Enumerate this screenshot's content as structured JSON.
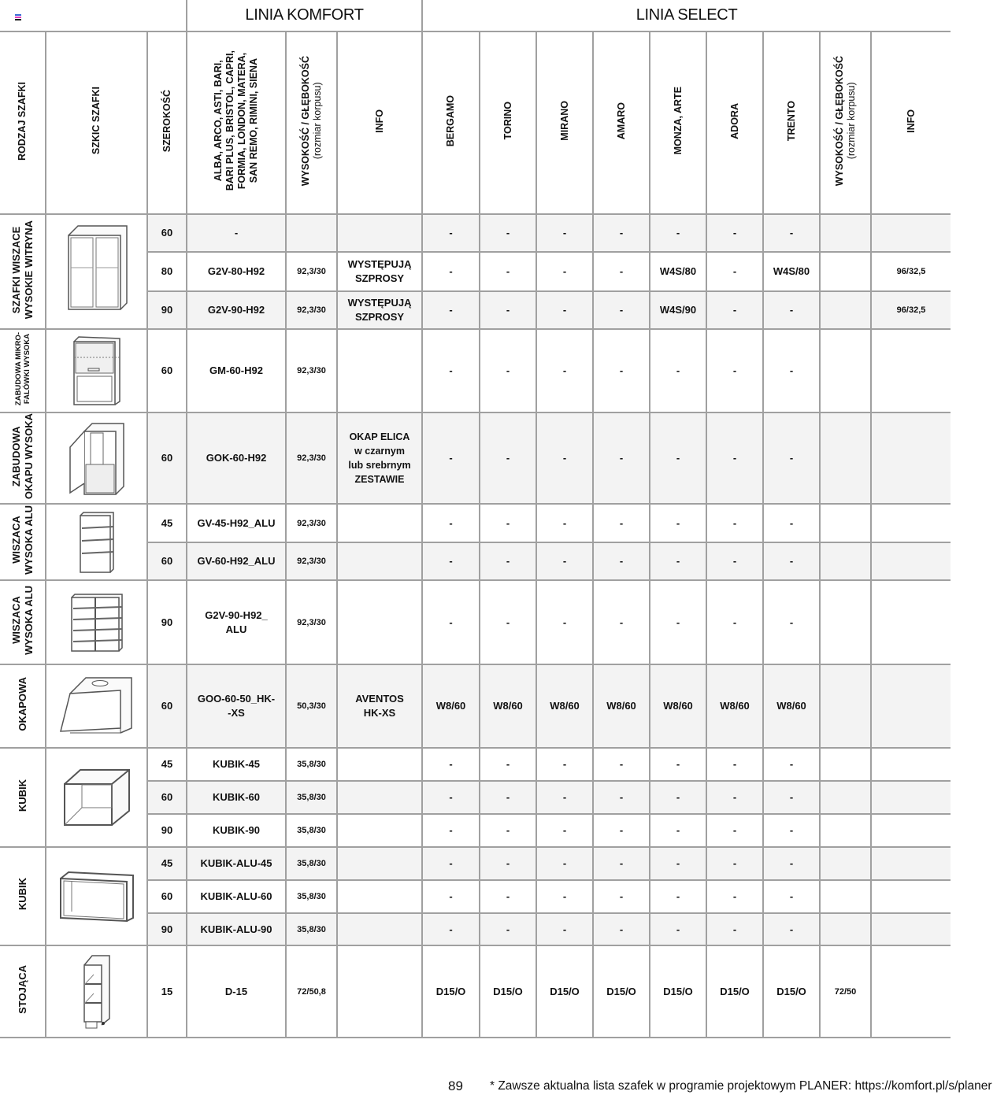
{
  "header": {
    "line_komfort": "LINIA KOMFORT",
    "line_select": "LINIA SELECT",
    "columns": {
      "type": "RODZAJ SZAFKI",
      "sketch": "SZKIC SZAFKI",
      "width": "SZEROKOŚĆ",
      "komfort_models": "ALBA, ARCO, ASTI, BARI,\nBARI PLUS, BRISTOL, CAPRI,\nFORMIA, LONDON, MATERA,\nSAN REMO, RIMINI, SIENA",
      "komfort_dims": "WYSOKOŚĆ / GŁĘBOKOŚĆ",
      "komfort_dims_sub": "(rozmiar korpusu)",
      "komfort_info": "INFO",
      "select_models": [
        "BERGAMO",
        "TORINO",
        "MIRANO",
        "AMARO",
        "MONZA,  ARTE",
        "ADORA",
        "TRENTO"
      ],
      "select_dims": "WYSOKOŚĆ / GŁĘBOKOŚĆ",
      "select_dims_sub": "(rozmiar korpusu)",
      "select_info": "INFO"
    }
  },
  "groups": [
    {
      "label": "SZAFKI WISZACE\nWYSOKIE WITRYNA",
      "sketch_icon": "glass-door-cabinet-icon",
      "rows": [
        {
          "width": "60",
          "code": "-",
          "dims": "",
          "info": "",
          "select": [
            "-",
            "-",
            "-",
            "-",
            "-",
            "-",
            "-"
          ],
          "select_dims": "",
          "select_info": ""
        },
        {
          "width": "80",
          "code": "G2V-80-H92",
          "dims": "92,3/30",
          "info": "WYSTĘPUJĄ\nSZPROSY",
          "select": [
            "-",
            "-",
            "-",
            "-",
            "W4S/80",
            "-",
            "W4S/80"
          ],
          "select_dims": "",
          "select_info": "96/32,5"
        },
        {
          "width": "90",
          "code": "G2V-90-H92",
          "dims": "92,3/30",
          "info": "WYSTĘPUJĄ\nSZPROSY",
          "select": [
            "-",
            "-",
            "-",
            "-",
            "W4S/90",
            "-",
            "-"
          ],
          "select_dims": "",
          "select_info": "96/32,5"
        }
      ]
    },
    {
      "label": "ZABUDOWA MIKRO-\nFALÓWKI WYSOKA",
      "sketch_icon": "microwave-cabinet-icon",
      "rows": [
        {
          "width": "60",
          "code": "GM-60-H92",
          "dims": "92,3/30",
          "info": "",
          "select": [
            "-",
            "-",
            "-",
            "-",
            "-",
            "-",
            "-"
          ],
          "select_dims": "",
          "select_info": ""
        }
      ]
    },
    {
      "label": "ZABUDOWA\nOKAPU WYSOKA",
      "sketch_icon": "hood-cabinet-icon",
      "rows": [
        {
          "width": "60",
          "code": "GOK-60-H92",
          "dims": "92,3/30",
          "info": "OKAP ELICA\nw czarnym\nlub srebrnym\nZESTAWIE",
          "select": [
            "-",
            "-",
            "-",
            "-",
            "-",
            "-",
            "-"
          ],
          "select_dims": "",
          "select_info": ""
        }
      ]
    },
    {
      "label": "WISZACA\nWYSOKA ALU",
      "sketch_icon": "open-shelf-cabinet-icon",
      "rows": [
        {
          "width": "45",
          "code": "GV-45-H92_ALU",
          "dims": "92,3/30",
          "info": "",
          "select": [
            "-",
            "-",
            "-",
            "-",
            "-",
            "-",
            "-"
          ],
          "select_dims": "",
          "select_info": ""
        },
        {
          "width": "60",
          "code": "GV-60-H92_ALU",
          "dims": "92,3/30",
          "info": "",
          "select": [
            "-",
            "-",
            "-",
            "-",
            "-",
            "-",
            "-"
          ],
          "select_dims": "",
          "select_info": ""
        }
      ]
    },
    {
      "label": "WISZACA\nWYSOKA ALU",
      "sketch_icon": "double-shelf-cabinet-icon",
      "rows": [
        {
          "width": "90",
          "code": "G2V-90-H92_\nALU",
          "dims": "92,3/30",
          "info": "",
          "select": [
            "-",
            "-",
            "-",
            "-",
            "-",
            "-",
            "-"
          ],
          "select_dims": "",
          "select_info": ""
        }
      ]
    },
    {
      "label": "OKAPOWA",
      "sketch_icon": "lift-up-hood-cabinet-icon",
      "rows": [
        {
          "width": "60",
          "code": "GOO-60-50_HK-\n-XS",
          "dims": "50,3/30",
          "info": "AVENTOS\nHK-XS",
          "select": [
            "W8/60",
            "W8/60",
            "W8/60",
            "W8/60",
            "W8/60",
            "W8/60",
            "W8/60"
          ],
          "select_dims": "",
          "select_info": ""
        }
      ]
    },
    {
      "label": "KUBIK",
      "sketch_icon": "cube-cabinet-icon",
      "rows": [
        {
          "width": "45",
          "code": "KUBIK-45",
          "dims": "35,8/30",
          "info": "",
          "select": [
            "-",
            "-",
            "-",
            "-",
            "-",
            "-",
            "-"
          ],
          "select_dims": "",
          "select_info": ""
        },
        {
          "width": "60",
          "code": "KUBIK-60",
          "dims": "35,8/30",
          "info": "",
          "select": [
            "-",
            "-",
            "-",
            "-",
            "-",
            "-",
            "-"
          ],
          "select_dims": "",
          "select_info": ""
        },
        {
          "width": "90",
          "code": "KUBIK-90",
          "dims": "35,8/30",
          "info": "",
          "select": [
            "-",
            "-",
            "-",
            "-",
            "-",
            "-",
            "-"
          ],
          "select_dims": "",
          "select_info": ""
        }
      ]
    },
    {
      "label": "KUBIK",
      "sketch_icon": "alu-frame-cube-icon",
      "rows": [
        {
          "width": "45",
          "code": "KUBIK-ALU-45",
          "dims": "35,8/30",
          "info": "",
          "select": [
            "-",
            "-",
            "-",
            "-",
            "-",
            "-",
            "-"
          ],
          "select_dims": "",
          "select_info": ""
        },
        {
          "width": "60",
          "code": "KUBIK-ALU-60",
          "dims": "35,8/30",
          "info": "",
          "select": [
            "-",
            "-",
            "-",
            "-",
            "-",
            "-",
            "-"
          ],
          "select_dims": "",
          "select_info": ""
        },
        {
          "width": "90",
          "code": "KUBIK-ALU-90",
          "dims": "35,8/30",
          "info": "",
          "select": [
            "-",
            "-",
            "-",
            "-",
            "-",
            "-",
            "-"
          ],
          "select_dims": "",
          "select_info": ""
        }
      ]
    },
    {
      "label": "STOJĄCA",
      "sketch_icon": "narrow-shelf-base-cabinet-icon",
      "rows": [
        {
          "width": "15",
          "code": "D-15",
          "dims": "72/50,8",
          "info": "",
          "select": [
            "D15/O",
            "D15/O",
            "D15/O",
            "D15/O",
            "D15/O",
            "D15/O",
            "D15/O"
          ],
          "select_dims": "72/50",
          "select_info": ""
        }
      ]
    }
  ],
  "footer": {
    "page_number": "89",
    "note": "* Zawsze aktualna lista szafek w programie projektowym PLANER: https://komfort.pl/s/planer"
  },
  "colors": {
    "grid": "#a0a0a0",
    "row_shade": "#f3f3f3"
  }
}
